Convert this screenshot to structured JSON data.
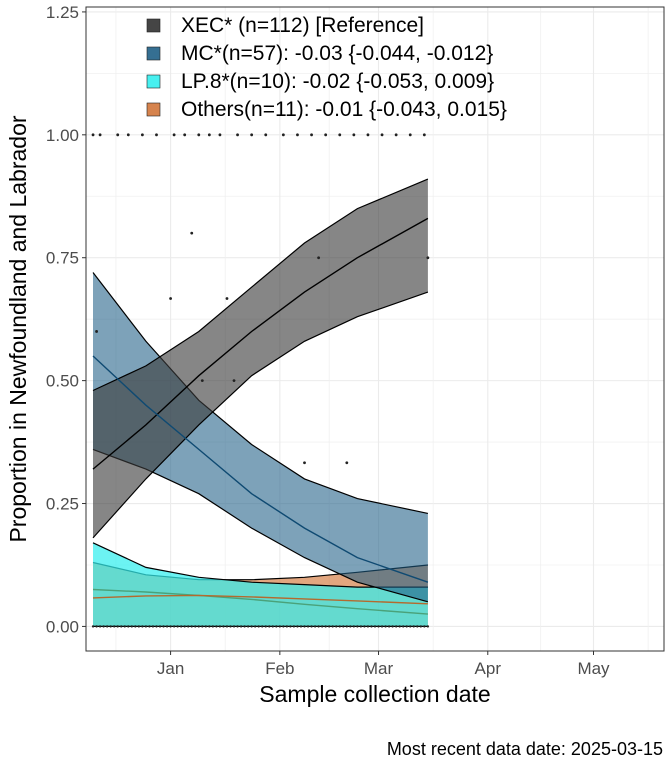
{
  "chart_data": {
    "type": "area",
    "xlabel": "Sample collection date",
    "ylabel": "Proportion in Newfoundland and Labrador",
    "caption": "Most recent data date: 2025-03-15",
    "x_ticks": [
      "Jan",
      "Feb",
      "Mar",
      "Apr",
      "May"
    ],
    "x_tick_dates": [
      "2025-01-01",
      "2025-02-01",
      "2025-03-01",
      "2025-04-01",
      "2025-05-01"
    ],
    "xlim": [
      "2024-12-08",
      "2025-05-21"
    ],
    "y_ticks": [
      "0.00",
      "0.25",
      "0.50",
      "0.75",
      "1.00",
      "1.25"
    ],
    "ylim": [
      -0.05,
      1.26
    ],
    "grid": true,
    "legend_position": "top-left (inside plot)",
    "series": [
      {
        "name": "XEC* (n=112)  [Reference]",
        "color": "#3b3b3b",
        "x": [
          "2024-12-10",
          "2024-12-25",
          "2025-01-09",
          "2025-01-24",
          "2025-02-08",
          "2025-02-23",
          "2025-03-15"
        ],
        "fit": [
          0.32,
          0.41,
          0.51,
          0.6,
          0.68,
          0.75,
          0.83
        ],
        "lower": [
          0.18,
          0.3,
          0.41,
          0.51,
          0.58,
          0.63,
          0.68
        ],
        "upper": [
          0.48,
          0.53,
          0.6,
          0.69,
          0.78,
          0.85,
          0.91
        ]
      },
      {
        "name": "MC*(n=57): -0.03 {-0.044, -0.012}",
        "color": "#1f5f86",
        "x": [
          "2024-12-10",
          "2024-12-25",
          "2025-01-09",
          "2025-01-24",
          "2025-02-08",
          "2025-02-23",
          "2025-03-15"
        ],
        "fit": [
          0.55,
          0.45,
          0.36,
          0.27,
          0.2,
          0.14,
          0.09
        ],
        "lower": [
          0.36,
          0.32,
          0.27,
          0.2,
          0.14,
          0.09,
          0.05
        ],
        "upper": [
          0.72,
          0.58,
          0.46,
          0.37,
          0.3,
          0.26,
          0.23
        ]
      },
      {
        "name": "LP.8*(n=10): -0.02 {-0.053, 0.009}",
        "color": "#33eeee",
        "x": [
          "2024-12-10",
          "2024-12-25",
          "2025-01-09",
          "2025-01-24",
          "2025-02-08",
          "2025-02-23",
          "2025-03-15"
        ],
        "fit": [
          0.075,
          0.07,
          0.063,
          0.055,
          0.045,
          0.036,
          0.025
        ],
        "lower": [
          0.0,
          0.0,
          0.0,
          0.0,
          0.0,
          0.0,
          0.0
        ],
        "upper": [
          0.17,
          0.12,
          0.1,
          0.09,
          0.085,
          0.08,
          0.08
        ]
      },
      {
        "name": "Others(n=11): -0.01 {-0.043, 0.015}",
        "color": "#d2763a",
        "x": [
          "2024-12-10",
          "2024-12-25",
          "2025-01-09",
          "2025-01-24",
          "2025-02-08",
          "2025-02-23",
          "2025-03-15"
        ],
        "fit": [
          0.058,
          0.062,
          0.063,
          0.06,
          0.056,
          0.052,
          0.046
        ],
        "lower": [
          0.0,
          0.0,
          0.0,
          0.0,
          0.0,
          0.0,
          0.0
        ],
        "upper": [
          0.13,
          0.105,
          0.095,
          0.095,
          0.1,
          0.11,
          0.125
        ]
      }
    ],
    "observations": {
      "x": [
        "2024-12-10",
        "2024-12-12",
        "2024-12-17",
        "2024-12-20",
        "2024-12-24",
        "2024-12-28",
        "2025-01-02",
        "2025-01-05",
        "2025-01-09",
        "2025-01-12",
        "2025-01-15",
        "2025-01-20",
        "2025-01-24",
        "2025-01-28",
        "2025-02-02",
        "2025-02-06",
        "2025-02-10",
        "2025-02-14",
        "2025-02-18",
        "2025-02-22",
        "2025-02-26",
        "2025-03-02",
        "2025-03-06",
        "2025-03-10",
        "2025-03-14",
        "2025-01-07",
        "2025-01-17",
        "2025-02-12",
        "2025-03-15",
        "2025-01-10",
        "2025-01-19",
        "2025-02-08",
        "2025-02-20",
        "2024-12-11",
        "2025-01-01"
      ],
      "y": [
        1.0,
        1.0,
        1.0,
        1.0,
        1.0,
        1.0,
        1.0,
        1.0,
        1.0,
        1.0,
        1.0,
        1.0,
        1.0,
        1.0,
        1.0,
        1.0,
        1.0,
        1.0,
        1.0,
        1.0,
        1.0,
        1.0,
        1.0,
        1.0,
        1.0,
        0.8,
        0.667,
        0.75,
        0.75,
        0.5,
        0.5,
        0.333,
        0.333,
        0.6,
        0.667
      ],
      "zeros_from": "2024-12-10",
      "zeros_to": "2025-03-15"
    }
  }
}
